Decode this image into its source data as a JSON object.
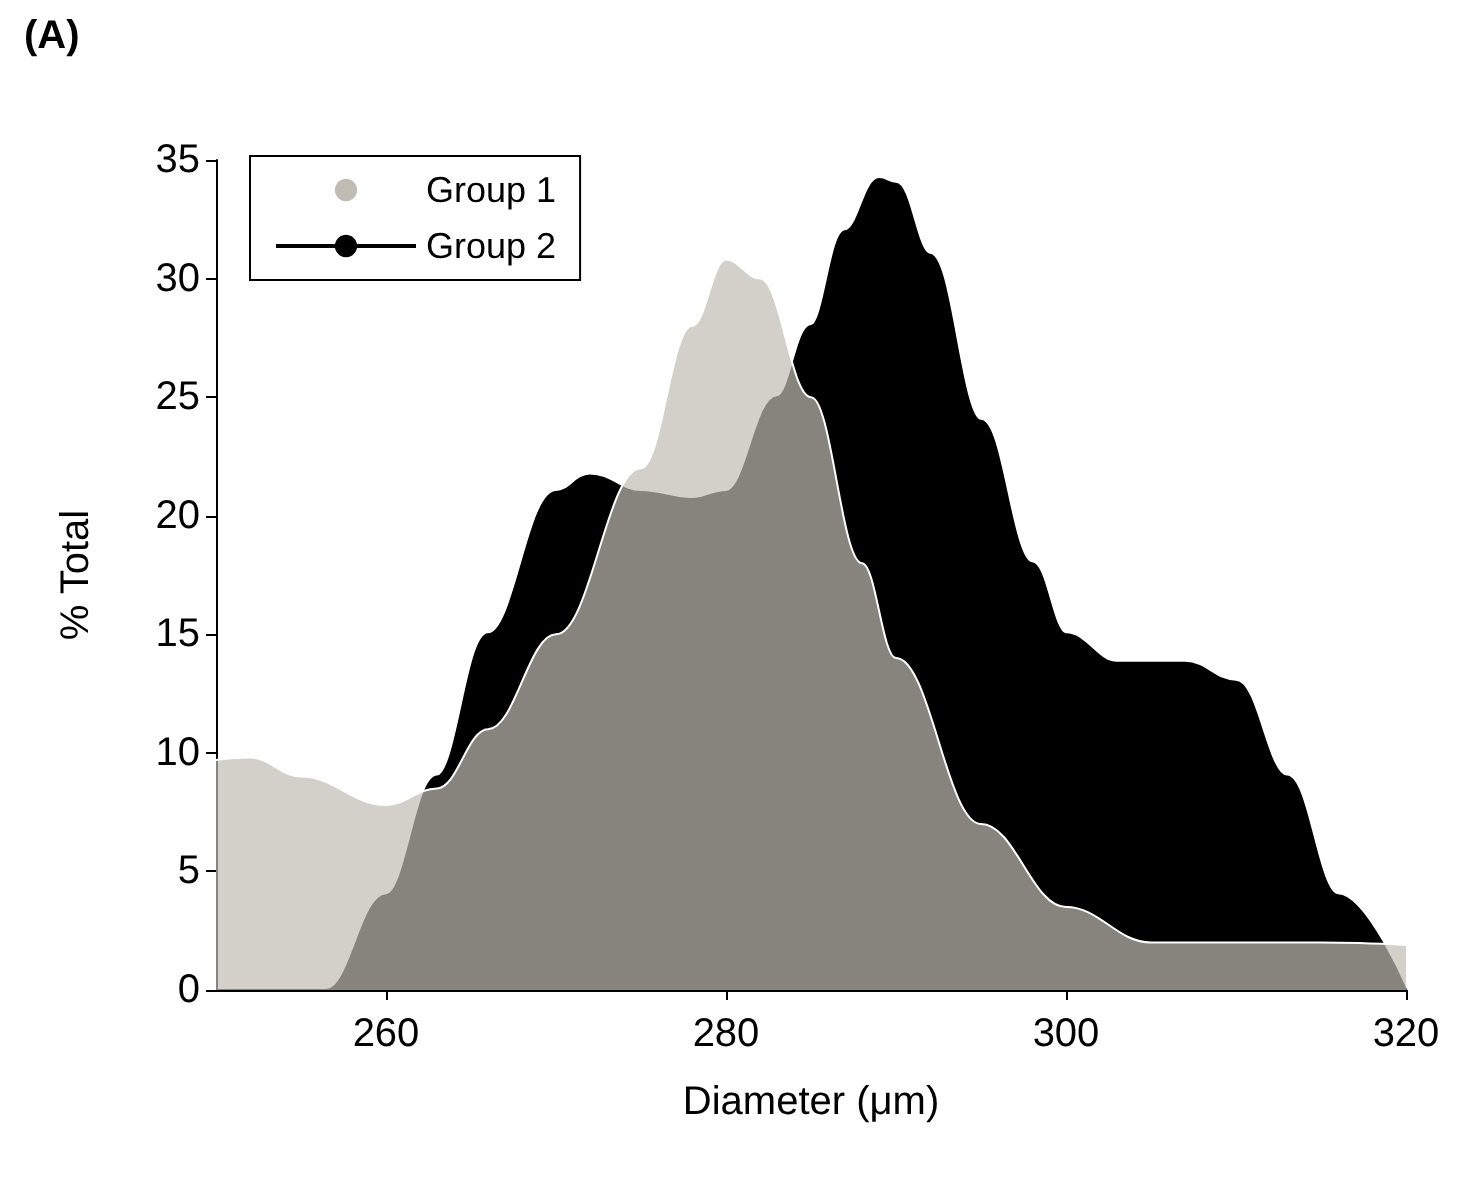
{
  "chart_data": {
    "type": "area",
    "annotations": [
      "(A)"
    ],
    "xlabel": "Diameter (μm)",
    "ylabel": "% Total",
    "xlim": [
      250,
      320
    ],
    "xticks": [
      260,
      280,
      300,
      320
    ],
    "ylim": [
      0,
      35
    ],
    "yticks": [
      0,
      5,
      10,
      15,
      20,
      25,
      30,
      35
    ],
    "grid": false,
    "legend": "top left",
    "marker": "none",
    "series": [
      {
        "name": "Group 2",
        "color": "#000000",
        "x": [
          250,
          254,
          256.5,
          260,
          263,
          266,
          270,
          272,
          275,
          278,
          280,
          283,
          285,
          287,
          289,
          290,
          292,
          295,
          298,
          300,
          303,
          307,
          310,
          313,
          316,
          320
        ],
        "values": [
          0,
          0,
          0,
          4,
          9,
          15,
          21,
          21.7,
          21,
          20.7,
          21,
          25,
          28,
          32,
          34.2,
          34,
          31,
          24,
          18,
          15,
          13.8,
          13.8,
          13,
          9,
          4,
          0
        ]
      },
      {
        "name": "Group 1",
        "color": "#c0bcb4",
        "x": [
          250,
          252,
          255,
          260,
          263,
          266,
          270,
          275,
          278,
          280,
          282,
          285,
          288,
          290,
          295,
          300,
          305,
          310,
          315,
          320
        ],
        "values": [
          9.7,
          9.8,
          9,
          7.8,
          8.5,
          11,
          15,
          22,
          28,
          30.8,
          30,
          25,
          18,
          14,
          7,
          3.5,
          2,
          2,
          2,
          1.9
        ]
      }
    ]
  }
}
